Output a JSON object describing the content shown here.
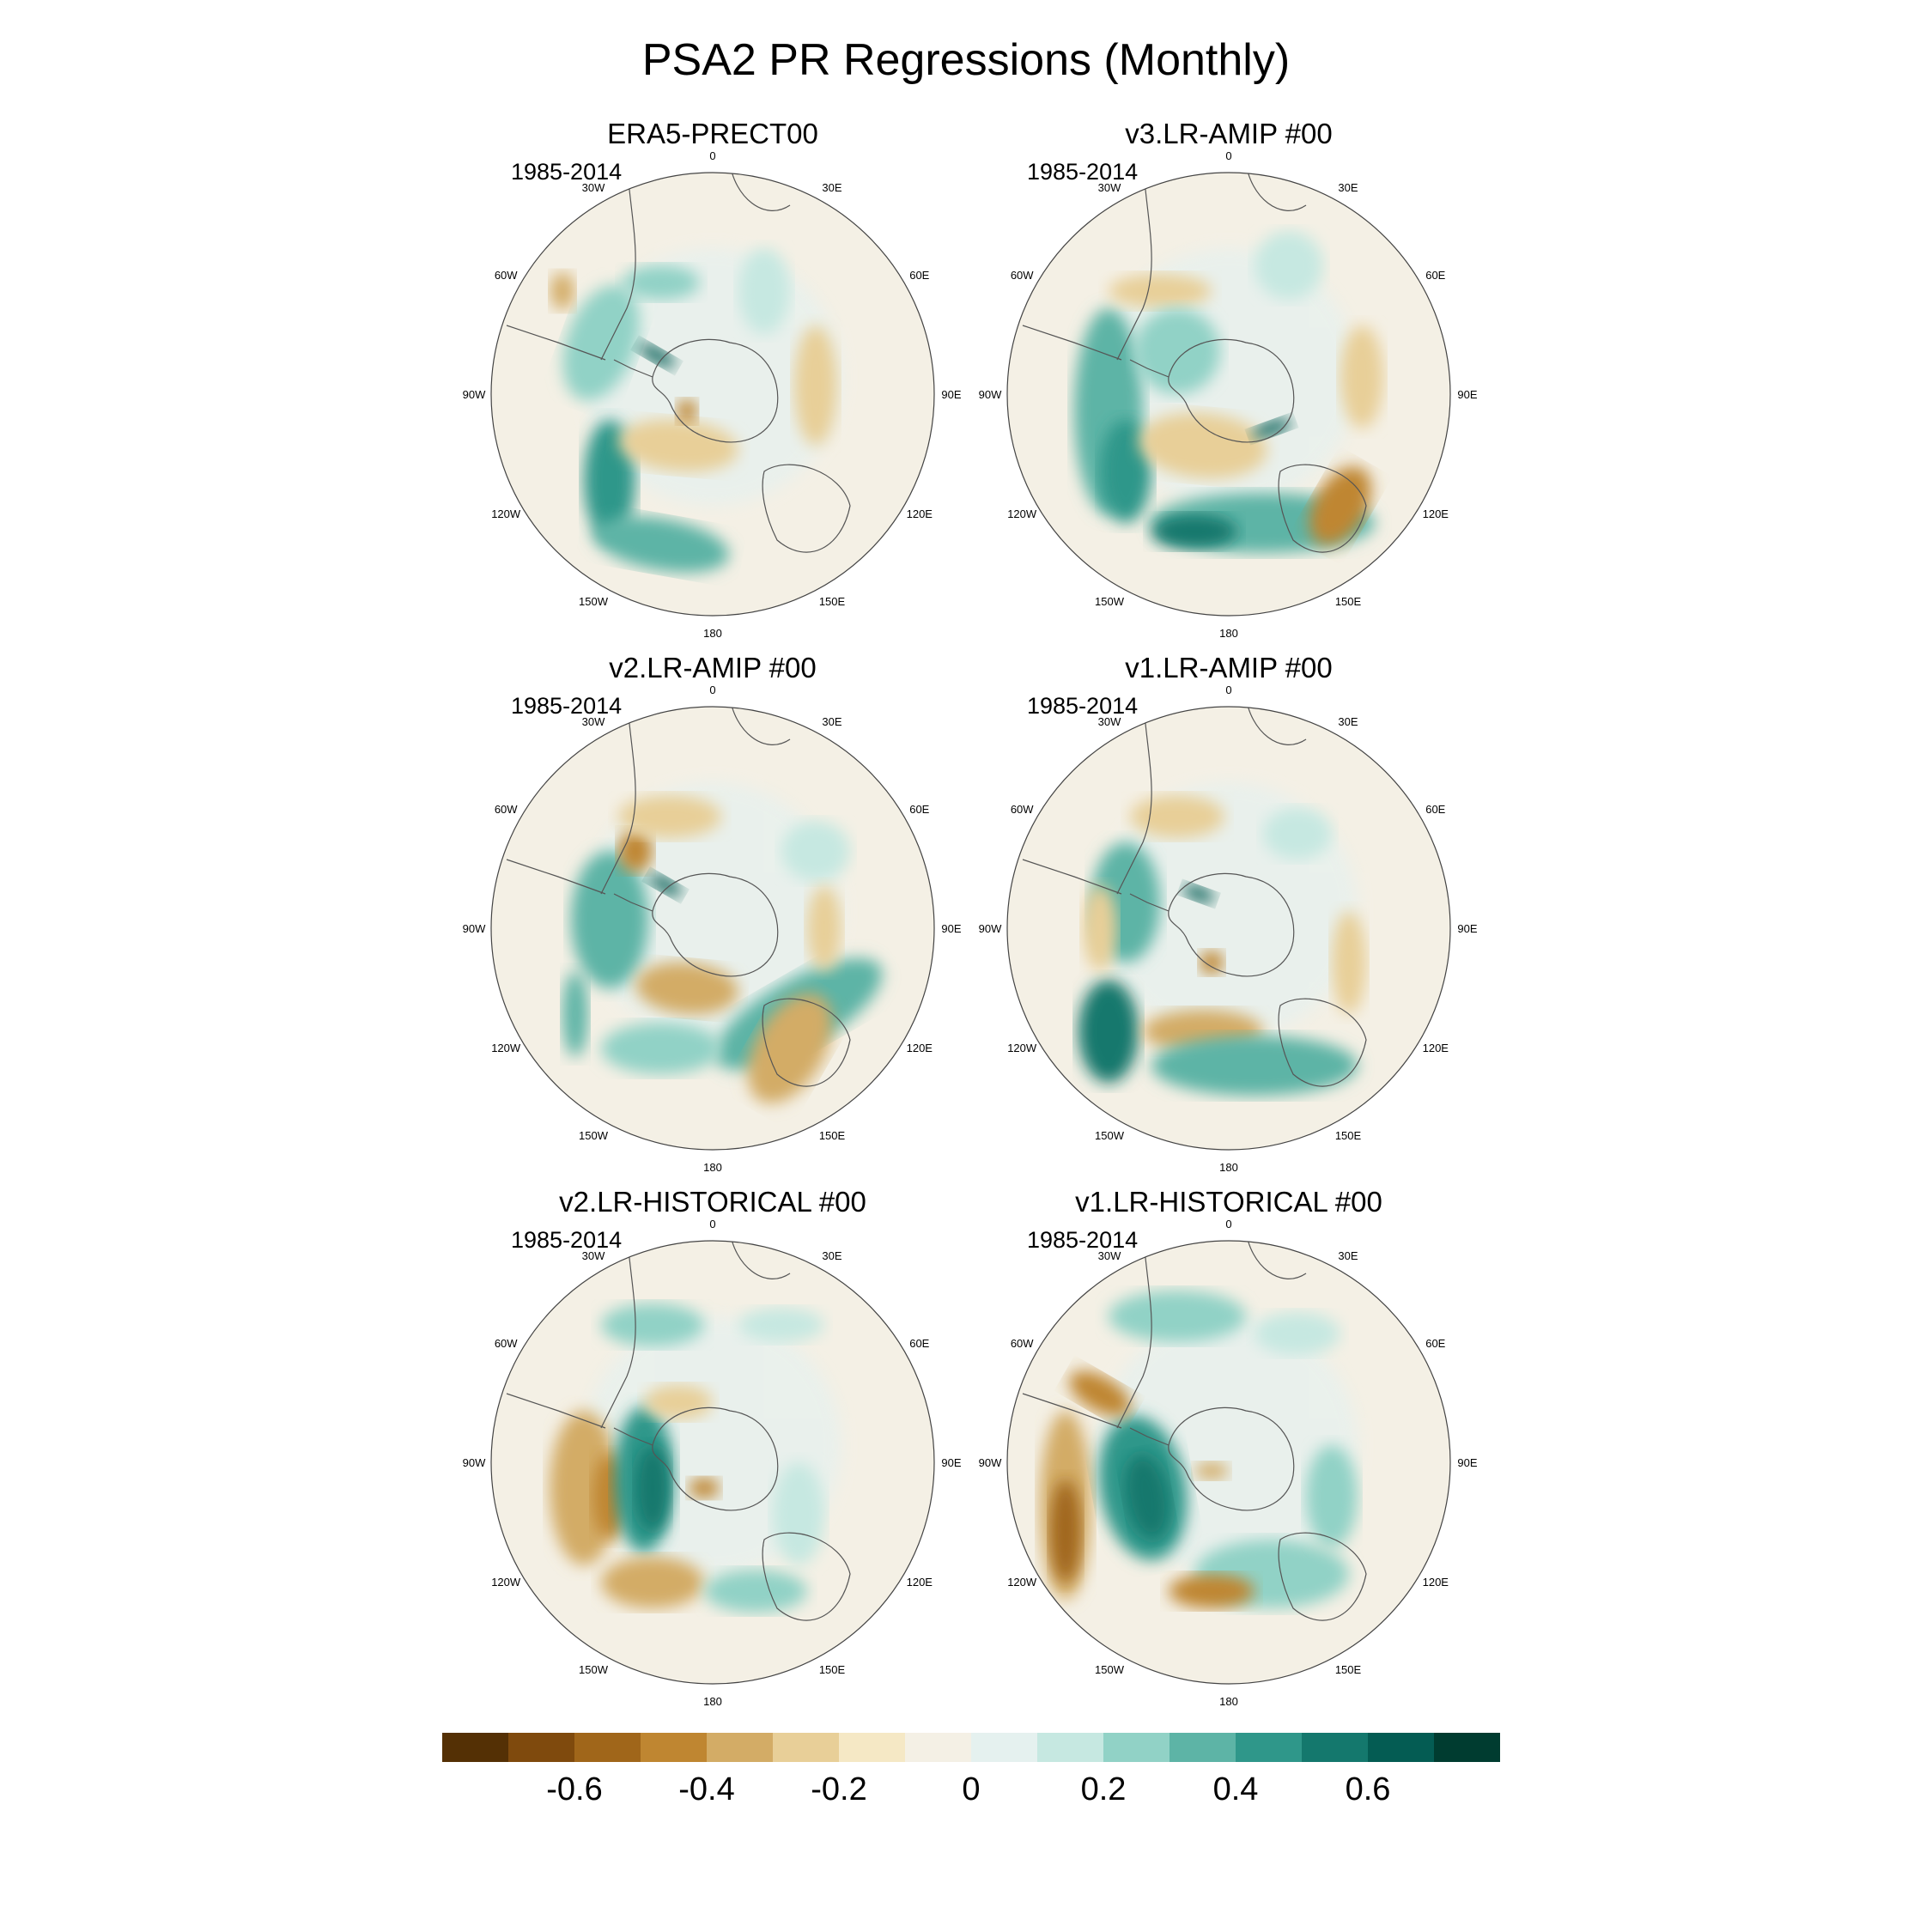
{
  "title": "PSA2 PR Regressions (Monthly)",
  "panels": [
    {
      "title": "ERA5-PRECT00",
      "period": "1985-2014"
    },
    {
      "title": "v3.LR-AMIP  #00",
      "period": "1985-2014"
    },
    {
      "title": "v2.LR-AMIP  #00",
      "period": "1985-2014"
    },
    {
      "title": "v1.LR-AMIP  #00",
      "period": "1985-2014"
    },
    {
      "title": "v2.LR-HISTORICAL  #00",
      "period": "1985-2014"
    },
    {
      "title": "v1.LR-HISTORICAL  #00",
      "period": "1985-2014"
    }
  ],
  "longitude_labels": [
    "0",
    "30E",
    "60E",
    "90E",
    "120E",
    "150E",
    "180",
    "150W",
    "120W",
    "90W",
    "60W",
    "30W"
  ],
  "colorbar": {
    "colors": [
      "#543005",
      "#7f4a0d",
      "#a0661a",
      "#bf8631",
      "#d3ac66",
      "#e8cf98",
      "#f5e8c5",
      "#f4f0e5",
      "#e5f1ef",
      "#c6e8e1",
      "#91d2c6",
      "#5db4a6",
      "#2f978a",
      "#14786d",
      "#045c53",
      "#003c30"
    ],
    "tick_labels": [
      "-0.6",
      "-0.4",
      "-0.2",
      "0",
      "0.2",
      "0.4",
      "0.6"
    ],
    "tick_values": [
      -0.6,
      -0.4,
      -0.2,
      0,
      0.2,
      0.4,
      0.6
    ]
  }
}
